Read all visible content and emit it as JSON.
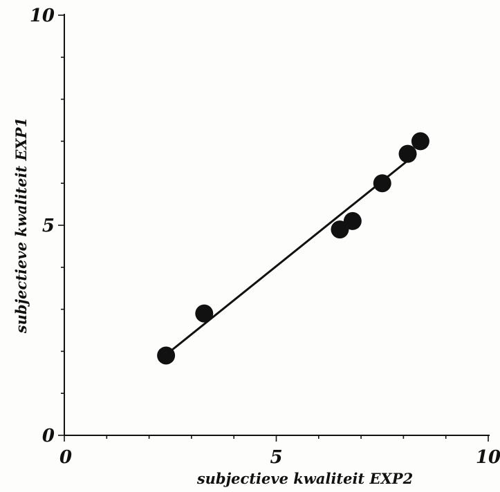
{
  "chart_data": {
    "type": "scatter",
    "title": "",
    "xlabel": "subjectieve kwaliteit EXP2",
    "ylabel": "subjectieve kwaliteit EXP1",
    "xlim": [
      0,
      10
    ],
    "ylim": [
      0,
      10
    ],
    "major_ticks": [
      0,
      5,
      10
    ],
    "tick_labels": {
      "x": [
        "0",
        "5",
        "10"
      ],
      "y": [
        "0",
        "5",
        "10"
      ]
    },
    "grid": false,
    "legend": "none",
    "series": [
      {
        "points": [
          {
            "x": 2.4,
            "y": 1.9
          },
          {
            "x": 3.3,
            "y": 2.9
          },
          {
            "x": 6.5,
            "y": 4.9
          },
          {
            "x": 6.8,
            "y": 5.1
          },
          {
            "x": 7.5,
            "y": 6.0
          },
          {
            "x": 8.1,
            "y": 6.7
          },
          {
            "x": 8.4,
            "y": 7.0
          }
        ]
      }
    ],
    "fit_line": {
      "x": [
        2.5,
        8.3
      ],
      "y": [
        2.0,
        6.7
      ]
    },
    "colors": {
      "ink": "#111111",
      "background": "#fdfdfb"
    }
  }
}
